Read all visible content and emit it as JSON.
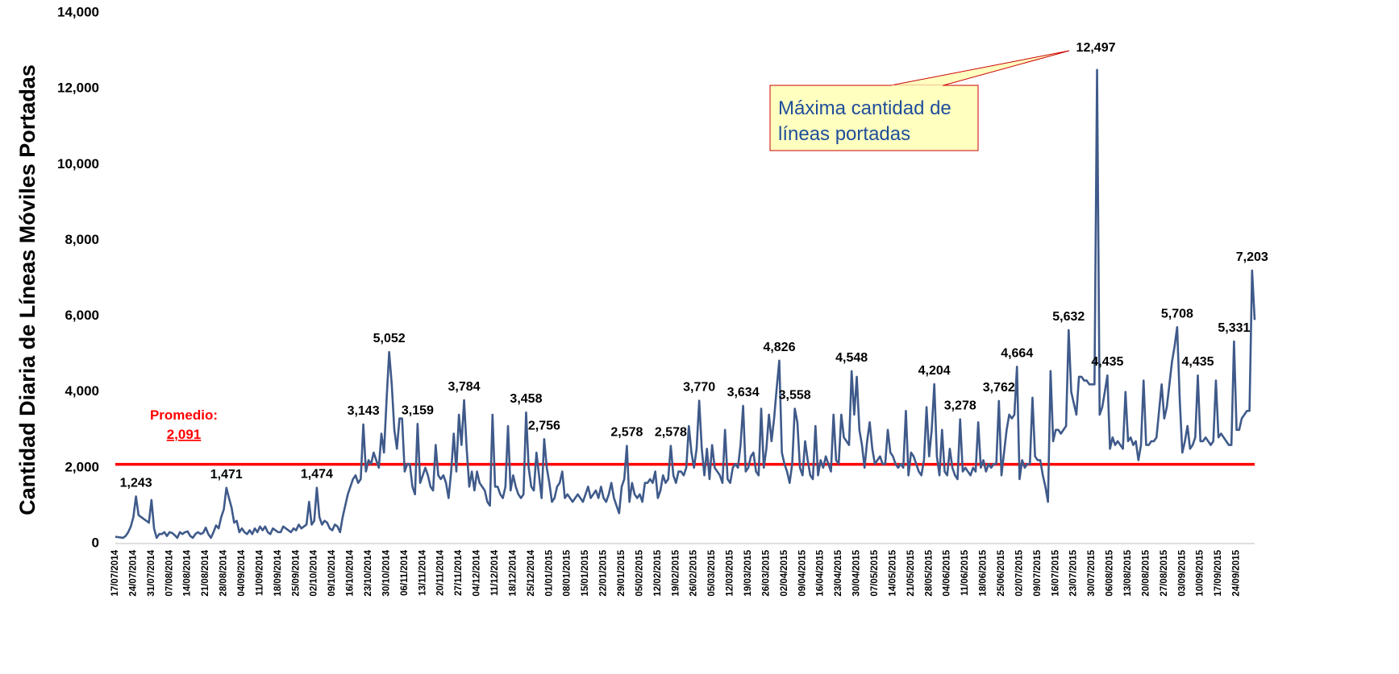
{
  "chart_data": {
    "type": "line",
    "y_label": "Cantidad Diaria de Líneas Móviles Portadas",
    "color": "#3f5a8a",
    "highlight_color": "#ff0000",
    "grid": false,
    "ylim": [
      0,
      14000
    ],
    "yticks": [
      0,
      {
        "value": 2000,
        "label": "2,000"
      },
      {
        "value": 4000,
        "label": "4,000"
      },
      {
        "value": 6000,
        "label": "6,000"
      },
      {
        "value": 8000,
        "label": "8,000"
      },
      {
        "value": 10000,
        "label": "10,000"
      },
      {
        "value": 12000,
        "label": "12,000"
      },
      {
        "value": 14000,
        "label": "14,000"
      }
    ],
    "reference_line": {
      "label": "Promedio:",
      "value": 2091,
      "value_label": "2,091",
      "color": "#ff0000"
    },
    "annotation": {
      "lines": [
        "Máxima cantidad de",
        "líneas portadas"
      ]
    },
    "categories": [
      "17/07/2014",
      null,
      null,
      null,
      null,
      null,
      null,
      "24/07/2014",
      null,
      null,
      null,
      null,
      null,
      null,
      "31/07/2014",
      null,
      null,
      null,
      null,
      null,
      null,
      "07/08/2014",
      null,
      null,
      null,
      null,
      null,
      null,
      "14/08/2014",
      null,
      null,
      null,
      null,
      null,
      null,
      "21/08/2014",
      null,
      null,
      null,
      null,
      null,
      null,
      "28/08/2014",
      null,
      null,
      null,
      null,
      null,
      null,
      "04/09/2014",
      null,
      null,
      null,
      null,
      null,
      null,
      "11/09/2014",
      null,
      null,
      null,
      null,
      null,
      null,
      "18/09/2014",
      null,
      null,
      null,
      null,
      null,
      null,
      "25/09/2014",
      null,
      null,
      null,
      null,
      null,
      null,
      "02/10/2014",
      null,
      null,
      null,
      null,
      null,
      null,
      "09/10/2014",
      null,
      null,
      null,
      null,
      null,
      null,
      "16/10/2014",
      null,
      null,
      null,
      null,
      null,
      null,
      "23/10/2014",
      null,
      null,
      null,
      null,
      null,
      null,
      "30/10/2014",
      null,
      null,
      null,
      null,
      null,
      null,
      "06/11/2014",
      null,
      null,
      null,
      null,
      null,
      null,
      "13/11/2014",
      null,
      null,
      null,
      null,
      null,
      null,
      "20/11/2014",
      null,
      null,
      null,
      null,
      null,
      null,
      "27/11/2014",
      null,
      null,
      null,
      null,
      null,
      null,
      "04/12/2014",
      null,
      null,
      null,
      null,
      null,
      null,
      "11/12/2014",
      null,
      null,
      null,
      null,
      null,
      null,
      "18/12/2014",
      null,
      null,
      null,
      null,
      null,
      null,
      "25/12/2014",
      null,
      null,
      null,
      null,
      null,
      null,
      "01/01/2015",
      null,
      null,
      null,
      null,
      null,
      null,
      "08/01/2015",
      null,
      null,
      null,
      null,
      null,
      null,
      "15/01/2015",
      null,
      null,
      null,
      null,
      null,
      null,
      "22/01/2015",
      null,
      null,
      null,
      null,
      null,
      null,
      "29/01/2015",
      null,
      null,
      null,
      null,
      null,
      null,
      "05/02/2015",
      null,
      null,
      null,
      null,
      null,
      null,
      "12/02/2015",
      null,
      null,
      null,
      null,
      null,
      null,
      "19/02/2015",
      null,
      null,
      null,
      null,
      null,
      null,
      "26/02/2015",
      null,
      null,
      null,
      null,
      null,
      null,
      "05/03/2015",
      null,
      null,
      null,
      null,
      null,
      null,
      "12/03/2015",
      null,
      null,
      null,
      null,
      null,
      null,
      "19/03/2015",
      null,
      null,
      null,
      null,
      null,
      null,
      "26/03/2015",
      null,
      null,
      null,
      null,
      null,
      null,
      "02/04/2015",
      null,
      null,
      null,
      null,
      null,
      null,
      "09/04/2015",
      null,
      null,
      null,
      null,
      null,
      null,
      "16/04/2015",
      null,
      null,
      null,
      null,
      null,
      null,
      "23/04/2015",
      null,
      null,
      null,
      null,
      null,
      null,
      "30/04/2015",
      null,
      null,
      null,
      null,
      null,
      null,
      "07/05/2015",
      null,
      null,
      null,
      null,
      null,
      null,
      "14/05/2015",
      null,
      null,
      null,
      null,
      null,
      null,
      "21/05/2015",
      null,
      null,
      null,
      null,
      null,
      null,
      "28/05/2015",
      null,
      null,
      null,
      null,
      null,
      null,
      "04/06/2015",
      null,
      null,
      null,
      null,
      null,
      null,
      "11/06/2015",
      null,
      null,
      null,
      null,
      null,
      null,
      "18/06/2015",
      null,
      null,
      null,
      null,
      null,
      null,
      "25/06/2015",
      null,
      null,
      null,
      null,
      null,
      null,
      "02/07/2015",
      null,
      null,
      null,
      null,
      null,
      null,
      "09/07/2015",
      null,
      null,
      null,
      null,
      null,
      null,
      "16/07/2015",
      null,
      null,
      null,
      null,
      null,
      null,
      "23/07/2015",
      null,
      null,
      null,
      null,
      null,
      null,
      "30/07/2015",
      null,
      null,
      null,
      null,
      null,
      null,
      "06/08/2015",
      null,
      null,
      null,
      null,
      null,
      null,
      "13/08/2015",
      null,
      null,
      null,
      null,
      null,
      null,
      "20/08/2015",
      null,
      null,
      null,
      null,
      null,
      null,
      "27/08/2015",
      null,
      null,
      null,
      null,
      null,
      null,
      "03/09/2015",
      null,
      null,
      null,
      null,
      null,
      null,
      "10/09/2015",
      null,
      null,
      null,
      null,
      null,
      null,
      "17/09/2015",
      null,
      null,
      null,
      null,
      null,
      null,
      "24/09/2015",
      null,
      null,
      null,
      null,
      null,
      null,
      null
    ],
    "values": [
      180,
      170,
      160,
      150,
      200,
      300,
      450,
      700,
      1243,
      750,
      700,
      650,
      600,
      550,
      1150,
      400,
      150,
      250,
      250,
      300,
      200,
      300,
      280,
      220,
      150,
      300,
      250,
      300,
      320,
      200,
      150,
      250,
      300,
      250,
      280,
      420,
      250,
      150,
      300,
      480,
      400,
      700,
      900,
      1471,
      1200,
      950,
      550,
      600,
      300,
      400,
      300,
      250,
      350,
      250,
      400,
      300,
      450,
      350,
      450,
      300,
      250,
      400,
      350,
      300,
      300,
      450,
      400,
      350,
      300,
      400,
      350,
      500,
      400,
      450,
      500,
      1100,
      500,
      600,
      1474,
      700,
      500,
      600,
      550,
      400,
      350,
      500,
      450,
      300,
      700,
      1000,
      1300,
      1500,
      1700,
      1800,
      1600,
      1700,
      3143,
      1900,
      2200,
      2100,
      2400,
      2200,
      2000,
      2900,
      2400,
      3800,
      5052,
      4200,
      3000,
      2500,
      3300,
      3300,
      1900,
      2100,
      2100,
      1500,
      1300,
      3159,
      1600,
      1800,
      2000,
      1800,
      1500,
      1400,
      2600,
      1800,
      1700,
      1800,
      1600,
      1200,
      1900,
      2900,
      1900,
      3400,
      2600,
      3784,
      2500,
      1500,
      1900,
      1400,
      1900,
      1600,
      1500,
      1400,
      1100,
      1000,
      3400,
      1500,
      1500,
      1300,
      1200,
      1500,
      3100,
      1400,
      1800,
      1500,
      1300,
      1200,
      1300,
      3458,
      2000,
      1500,
      1400,
      2400,
      1800,
      1200,
      2756,
      2000,
      1600,
      1100,
      1200,
      1500,
      1600,
      1900,
      1200,
      1300,
      1200,
      1100,
      1200,
      1300,
      1200,
      1100,
      1300,
      1500,
      1200,
      1300,
      1400,
      1200,
      1500,
      1200,
      1100,
      1300,
      1600,
      1200,
      1000,
      800,
      1500,
      1700,
      2578,
      1100,
      1600,
      1300,
      1200,
      1300,
      1100,
      1600,
      1600,
      1700,
      1600,
      1900,
      1200,
      1400,
      1800,
      1600,
      1700,
      2578,
      1800,
      1600,
      1900,
      1900,
      1800,
      2000,
      3100,
      2400,
      2000,
      2500,
      3770,
      2500,
      1800,
      2500,
      1700,
      2600,
      2000,
      1900,
      1800,
      1600,
      3000,
      1700,
      1600,
      2000,
      2100,
      2000,
      2600,
      3634,
      1900,
      2000,
      2300,
      2400,
      1900,
      1800,
      3560,
      2000,
      2500,
      3400,
      2700,
      3300,
      4100,
      4826,
      2400,
      2100,
      1900,
      1600,
      2100,
      3558,
      3200,
      2000,
      1800,
      2700,
      2200,
      1800,
      1700,
      3100,
      1800,
      2200,
      2000,
      2300,
      2100,
      1900,
      3400,
      2200,
      2100,
      3400,
      2800,
      2700,
      2600,
      4548,
      3400,
      4400,
      3000,
      2600,
      2000,
      2700,
      3200,
      2500,
      2100,
      2200,
      2300,
      2100,
      2100,
      3000,
      2400,
      2300,
      2100,
      2000,
      2100,
      2000,
      3500,
      1800,
      2400,
      2300,
      2100,
      1900,
      1800,
      2200,
      3600,
      2300,
      3000,
      4204,
      2300,
      1800,
      3000,
      1900,
      1800,
      2500,
      2000,
      1800,
      1700,
      3278,
      1900,
      2000,
      1900,
      1800,
      2000,
      1900,
      3200,
      2000,
      2200,
      1900,
      2100,
      2000,
      2100,
      2100,
      3762,
      1800,
      2400,
      3000,
      3400,
      3300,
      3400,
      4664,
      1700,
      2200,
      2000,
      2100,
      2100,
      3850,
      2300,
      2200,
      2200,
      1800,
      1500,
      1100,
      4550,
      2700,
      3000,
      3000,
      2900,
      3000,
      3100,
      5632,
      4000,
      3700,
      3400,
      4400,
      4400,
      4300,
      4300,
      4200,
      4200,
      4200,
      12497,
      3400,
      3600,
      4000,
      4435,
      2500,
      2800,
      2600,
      2700,
      2600,
      2500,
      4000,
      2700,
      2800,
      2600,
      2700,
      2200,
      2600,
      4300,
      2600,
      2600,
      2700,
      2700,
      2800,
      3500,
      4200,
      3300,
      3600,
      4200,
      4800,
      5200,
      5708,
      3800,
      2400,
      2700,
      3100,
      2500,
      2600,
      2800,
      4435,
      2700,
      2700,
      2800,
      2700,
      2600,
      2700,
      4300,
      2800,
      2900,
      2800,
      2700,
      2600,
      2600,
      5331,
      3000,
      3000,
      3300,
      3400,
      3500,
      3500,
      7203,
      5900
    ],
    "value_labels": [
      null,
      null,
      null,
      null,
      null,
      null,
      null,
      null,
      "1,243",
      null,
      null,
      null,
      null,
      null,
      null,
      null,
      null,
      null,
      null,
      null,
      null,
      null,
      null,
      null,
      null,
      null,
      null,
      null,
      null,
      null,
      null,
      null,
      null,
      null,
      null,
      null,
      null,
      null,
      null,
      null,
      null,
      null,
      null,
      "1,471",
      null,
      null,
      null,
      null,
      null,
      null,
      null,
      null,
      null,
      null,
      null,
      null,
      null,
      null,
      null,
      null,
      null,
      null,
      null,
      null,
      null,
      null,
      null,
      null,
      null,
      null,
      null,
      null,
      null,
      null,
      null,
      null,
      null,
      null,
      "1,474",
      null,
      null,
      null,
      null,
      null,
      null,
      null,
      null,
      null,
      null,
      null,
      null,
      null,
      null,
      null,
      null,
      null,
      "3,143",
      null,
      null,
      null,
      null,
      null,
      null,
      null,
      null,
      null,
      "5,052",
      null,
      null,
      null,
      null,
      null,
      null,
      null,
      null,
      null,
      null,
      "3,159",
      null,
      null,
      null,
      null,
      null,
      null,
      null,
      null,
      null,
      null,
      null,
      null,
      null,
      null,
      null,
      null,
      null,
      "3,784",
      null,
      null,
      null,
      null,
      null,
      null,
      null,
      null,
      null,
      null,
      null,
      null,
      null,
      null,
      null,
      null,
      null,
      null,
      null,
      null,
      null,
      null,
      null,
      "3,458",
      null,
      null,
      null,
      null,
      null,
      null,
      "2,756",
      null,
      null,
      null,
      null,
      null,
      null,
      null,
      null,
      null,
      null,
      null,
      null,
      null,
      null,
      null,
      null,
      null,
      null,
      null,
      null,
      null,
      null,
      null,
      null,
      null,
      null,
      null,
      null,
      null,
      null,
      null,
      "2,578",
      null,
      null,
      null,
      null,
      null,
      null,
      null,
      null,
      null,
      null,
      null,
      null,
      null,
      null,
      null,
      null,
      "2,578",
      null,
      null,
      null,
      null,
      null,
      null,
      null,
      null,
      null,
      null,
      "3,770",
      null,
      null,
      null,
      null,
      null,
      null,
      null,
      null,
      null,
      null,
      null,
      null,
      null,
      null,
      null,
      null,
      "3,634",
      null,
      null,
      null,
      null,
      null,
      null,
      null,
      null,
      null,
      null,
      null,
      null,
      null,
      "4,826",
      null,
      null,
      null,
      null,
      null,
      "3,558",
      null,
      null,
      null,
      null,
      null,
      null,
      null,
      null,
      null,
      null,
      null,
      null,
      null,
      null,
      null,
      null,
      null,
      null,
      null,
      null,
      null,
      "4,548",
      null,
      null,
      null,
      null,
      null,
      null,
      null,
      null,
      null,
      null,
      null,
      null,
      null,
      null,
      null,
      null,
      null,
      null,
      null,
      null,
      null,
      null,
      null,
      null,
      null,
      null,
      null,
      null,
      null,
      null,
      null,
      "4,204",
      null,
      null,
      null,
      null,
      null,
      null,
      null,
      null,
      null,
      "3,278",
      null,
      null,
      null,
      null,
      null,
      null,
      null,
      null,
      null,
      null,
      null,
      null,
      null,
      null,
      "3,762",
      null,
      null,
      null,
      null,
      null,
      null,
      "4,664",
      null,
      null,
      null,
      null,
      null,
      null,
      null,
      null,
      null,
      null,
      null,
      null,
      null,
      null,
      null,
      null,
      null,
      null,
      null,
      "5,632",
      null,
      null,
      null,
      null,
      null,
      null,
      null,
      null,
      null,
      null,
      "12,497",
      null,
      null,
      null,
      "4,435",
      null,
      null,
      null,
      null,
      null,
      null,
      null,
      null,
      null,
      null,
      null,
      null,
      null,
      null,
      null,
      null,
      null,
      null,
      null,
      null,
      null,
      null,
      null,
      null,
      null,
      null,
      "5,708",
      null,
      null,
      null,
      null,
      null,
      null,
      null,
      "4,435",
      null,
      null,
      null,
      null,
      null,
      null,
      null,
      null,
      null,
      null,
      null,
      null,
      null,
      "5,331",
      null,
      null,
      null,
      null,
      null,
      null,
      "7,203",
      null
    ]
  }
}
